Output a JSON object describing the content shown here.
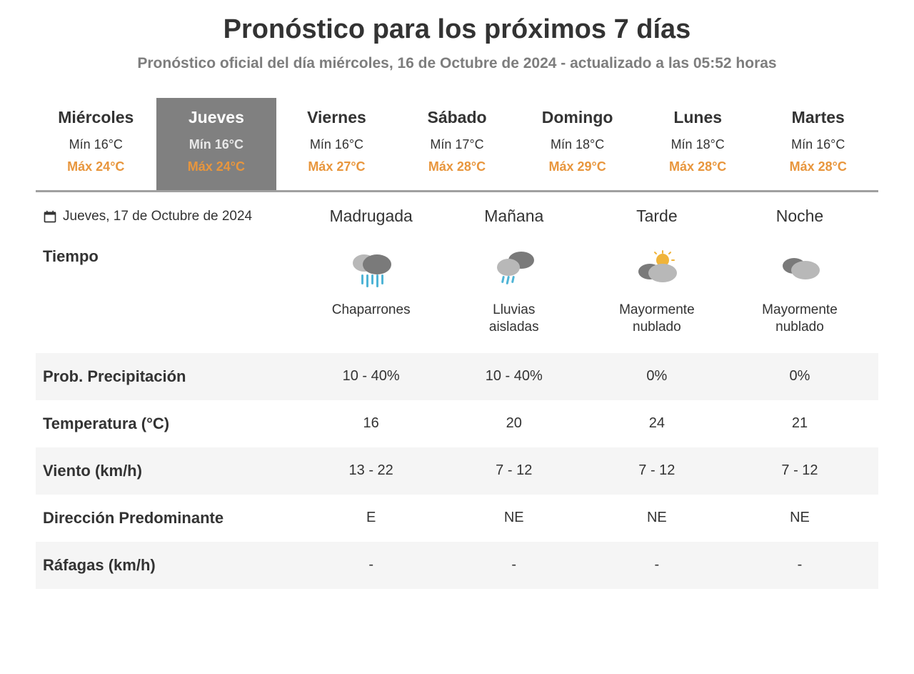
{
  "title": "Pronóstico para los próximos 7 días",
  "subtitle": {
    "prefix": "Pronóstico oficial del día",
    "date": "miércoles, 16 de Octubre de 2024",
    "sep": " - ",
    "updated_label": "actualizado a las",
    "time": "05:52",
    "suffix": "horas"
  },
  "colors": {
    "max": "#e8963d",
    "selected_bg": "#808080",
    "text": "#333333",
    "muted": "#7d7d7d",
    "stripe": "#f5f5f5",
    "tab_border": "#a0a0a0",
    "icon_cloud_dark": "#7a7a7a",
    "icon_cloud_light": "#b8b8b8",
    "icon_rain": "#4fb4d6",
    "icon_sun": "#f0b43a"
  },
  "days": [
    {
      "name": "Miércoles",
      "min": "Mín 16°C",
      "max": "Máx 24°C",
      "selected": false
    },
    {
      "name": "Jueves",
      "min": "Mín 16°C",
      "max": "Máx 24°C",
      "selected": true
    },
    {
      "name": "Viernes",
      "min": "Mín 16°C",
      "max": "Máx 27°C",
      "selected": false
    },
    {
      "name": "Sábado",
      "min": "Mín 17°C",
      "max": "Máx 28°C",
      "selected": false
    },
    {
      "name": "Domingo",
      "min": "Mín 18°C",
      "max": "Máx 29°C",
      "selected": false
    },
    {
      "name": "Lunes",
      "min": "Mín 18°C",
      "max": "Máx 28°C",
      "selected": false
    },
    {
      "name": "Martes",
      "min": "Mín 16°C",
      "max": "Máx 28°C",
      "selected": false
    }
  ],
  "detail_date": "Jueves, 17 de Octubre de 2024",
  "periods": [
    "Madrugada",
    "Mañana",
    "Tarde",
    "Noche"
  ],
  "tiempo_label": "Tiempo",
  "tiempo": [
    {
      "icon": "showers",
      "desc": "Chaparrones"
    },
    {
      "icon": "isolated-rain",
      "desc": "Lluvias aisladas"
    },
    {
      "icon": "mostly-cloudy-day",
      "desc": "Mayormente nublado"
    },
    {
      "icon": "mostly-cloudy",
      "desc": "Mayormente nublado"
    }
  ],
  "rows": [
    {
      "label": "Prob. Precipitación",
      "values": [
        "10 - 40%",
        "10 - 40%",
        "0%",
        "0%"
      ]
    },
    {
      "label": "Temperatura (°C)",
      "values": [
        "16",
        "20",
        "24",
        "21"
      ]
    },
    {
      "label": "Viento (km/h)",
      "values": [
        "13 - 22",
        "7 - 12",
        "7 - 12",
        "7 - 12"
      ]
    },
    {
      "label": "Dirección Predominante",
      "values": [
        "E",
        "NE",
        "NE",
        "NE"
      ]
    },
    {
      "label": "Ráfagas (km/h)",
      "values": [
        "-",
        "-",
        "-",
        "-"
      ]
    }
  ]
}
